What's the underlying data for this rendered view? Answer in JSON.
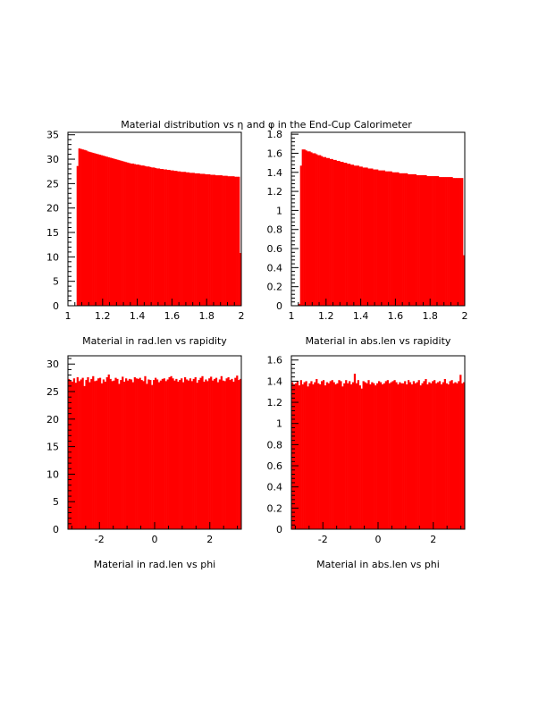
{
  "title": "Material distribution vs η and φ in the End-Cup Calorimeter",
  "colors": {
    "bars": "#ff0000",
    "axes": "#000000",
    "background": "#ffffff"
  },
  "chart_data": [
    {
      "type": "bar",
      "xlabel": "Material in rad.len vs rapidity",
      "ylabel": "",
      "xlim": [
        1,
        2
      ],
      "ylim": [
        0,
        35.5
      ],
      "xticks": [
        1,
        1.2,
        1.4,
        1.6,
        1.8,
        2
      ],
      "xtick_labels": [
        "1",
        "1.2",
        "1.4",
        "1.6",
        "1.8",
        "2"
      ],
      "yticks": [
        0,
        5,
        10,
        15,
        20,
        25,
        30,
        35
      ],
      "ytick_labels": [
        "0",
        "5",
        "10",
        "15",
        "20",
        "25",
        "30",
        "35"
      ],
      "bins": {
        "start": 1.0,
        "end": 2.0,
        "count": 100
      },
      "values": [
        0,
        0,
        0,
        0,
        0,
        28.6,
        32.2,
        32.1,
        32.0,
        31.9,
        31.8,
        31.6,
        31.5,
        31.4,
        31.3,
        31.2,
        31.1,
        31.0,
        30.9,
        30.8,
        30.7,
        30.6,
        30.5,
        30.4,
        30.3,
        30.2,
        30.1,
        30.0,
        29.9,
        29.8,
        29.7,
        29.6,
        29.5,
        29.4,
        29.3,
        29.2,
        29.1,
        29.1,
        29.0,
        28.9,
        28.9,
        28.8,
        28.7,
        28.7,
        28.6,
        28.5,
        28.5,
        28.4,
        28.3,
        28.3,
        28.2,
        28.1,
        28.1,
        28.0,
        28.0,
        27.9,
        27.9,
        27.8,
        27.8,
        27.7,
        27.7,
        27.6,
        27.6,
        27.5,
        27.5,
        27.4,
        27.4,
        27.4,
        27.3,
        27.3,
        27.2,
        27.2,
        27.2,
        27.1,
        27.1,
        27.1,
        27.0,
        27.0,
        27.0,
        26.9,
        26.9,
        26.9,
        26.8,
        26.8,
        26.8,
        26.7,
        26.7,
        26.7,
        26.7,
        26.6,
        26.6,
        26.6,
        26.5,
        26.5,
        26.5,
        26.5,
        26.4,
        26.4,
        26.4,
        10.8
      ]
    },
    {
      "type": "bar",
      "xlabel": "Material in abs.len vs rapidity",
      "ylabel": "",
      "xlim": [
        1,
        2
      ],
      "ylim": [
        0,
        1.82
      ],
      "xticks": [
        1,
        1.2,
        1.4,
        1.6,
        1.8,
        2
      ],
      "xtick_labels": [
        "1",
        "1.2",
        "1.4",
        "1.6",
        "1.8",
        "2"
      ],
      "yticks": [
        0,
        0.2,
        0.4,
        0.6,
        0.8,
        1,
        1.2,
        1.4,
        1.6,
        1.8
      ],
      "ytick_labels": [
        "0",
        "0.2",
        "0.4",
        "0.6",
        "0.8",
        "1",
        "1.2",
        "1.4",
        "1.6",
        "1.8"
      ],
      "bins": {
        "start": 1.0,
        "end": 2.0,
        "count": 100
      },
      "values": [
        0,
        0,
        0,
        0,
        0.02,
        1.47,
        1.64,
        1.64,
        1.63,
        1.62,
        1.62,
        1.61,
        1.6,
        1.6,
        1.59,
        1.58,
        1.58,
        1.57,
        1.56,
        1.56,
        1.55,
        1.55,
        1.54,
        1.54,
        1.53,
        1.53,
        1.52,
        1.52,
        1.51,
        1.51,
        1.5,
        1.5,
        1.49,
        1.49,
        1.48,
        1.48,
        1.47,
        1.47,
        1.47,
        1.46,
        1.46,
        1.45,
        1.45,
        1.45,
        1.44,
        1.44,
        1.44,
        1.43,
        1.43,
        1.43,
        1.42,
        1.42,
        1.42,
        1.42,
        1.41,
        1.41,
        1.41,
        1.41,
        1.4,
        1.4,
        1.4,
        1.4,
        1.39,
        1.39,
        1.39,
        1.39,
        1.39,
        1.38,
        1.38,
        1.38,
        1.38,
        1.38,
        1.37,
        1.37,
        1.37,
        1.37,
        1.37,
        1.37,
        1.36,
        1.36,
        1.36,
        1.36,
        1.36,
        1.36,
        1.36,
        1.35,
        1.35,
        1.35,
        1.35,
        1.35,
        1.35,
        1.35,
        1.35,
        1.34,
        1.34,
        1.34,
        1.34,
        1.34,
        1.34,
        0.53
      ]
    },
    {
      "type": "bar",
      "xlabel": "Material in rad.len vs phi",
      "ylabel": "",
      "xlim": [
        -3.1416,
        3.1416
      ],
      "ylim": [
        0,
        31.5
      ],
      "xticks": [
        -2,
        0,
        2
      ],
      "xtick_labels": [
        "-2",
        "0",
        "2"
      ],
      "yticks": [
        0,
        5,
        10,
        15,
        20,
        25,
        30
      ],
      "ytick_labels": [
        "0",
        "5",
        "10",
        "15",
        "20",
        "25",
        "30"
      ],
      "bins": {
        "start": -3.1416,
        "end": 3.1416,
        "count": 100
      },
      "values": [
        27.3,
        27.0,
        26.8,
        27.4,
        26.6,
        27.6,
        26.9,
        27.2,
        27.5,
        26.0,
        27.1,
        27.6,
        26.7,
        27.3,
        27.8,
        26.9,
        27.0,
        27.4,
        27.5,
        26.5,
        27.2,
        26.8,
        27.6,
        28.1,
        27.3,
        26.9,
        27.0,
        27.5,
        27.3,
        26.4,
        27.1,
        27.7,
        26.8,
        27.4,
        27.0,
        27.3,
        27.2,
        26.7,
        27.6,
        27.4,
        27.3,
        27.5,
        27.1,
        26.9,
        27.8,
        26.4,
        27.2,
        27.1,
        26.2,
        27.1,
        27.5,
        27.2,
        26.7,
        27.0,
        27.3,
        27.4,
        26.9,
        27.2,
        27.6,
        27.8,
        27.4,
        27.0,
        27.3,
        26.8,
        27.1,
        27.4,
        26.7,
        27.6,
        27.2,
        27.0,
        27.4,
        26.9,
        27.3,
        27.6,
        26.6,
        27.1,
        27.5,
        27.8,
        26.8,
        27.2,
        26.9,
        27.4,
        27.7,
        27.0,
        27.3,
        27.5,
        26.7,
        27.2,
        27.8,
        27.0,
        26.9,
        27.4,
        27.6,
        27.1,
        27.3,
        26.8,
        27.5,
        27.9,
        27.1,
        27.3
      ]
    },
    {
      "type": "bar",
      "xlabel": "Material in abs.len vs phi",
      "ylabel": "",
      "xlim": [
        -3.1416,
        3.1416
      ],
      "ylim": [
        0,
        1.64
      ],
      "xticks": [
        -2,
        0,
        2
      ],
      "xtick_labels": [
        "-2",
        "0",
        "2"
      ],
      "yticks": [
        0,
        0.2,
        0.4,
        0.6,
        0.8,
        1,
        1.2,
        1.4,
        1.6
      ],
      "ytick_labels": [
        "0",
        "0.2",
        "0.4",
        "0.6",
        "0.8",
        "1",
        "1.2",
        "1.4",
        "1.6"
      ],
      "bins": {
        "start": -3.1416,
        "end": 3.1416,
        "count": 100
      },
      "values": [
        1.39,
        1.37,
        1.38,
        1.4,
        1.36,
        1.41,
        1.37,
        1.39,
        1.4,
        1.35,
        1.38,
        1.4,
        1.37,
        1.39,
        1.42,
        1.38,
        1.37,
        1.4,
        1.41,
        1.36,
        1.39,
        1.38,
        1.4,
        1.41,
        1.39,
        1.37,
        1.38,
        1.41,
        1.4,
        1.35,
        1.38,
        1.41,
        1.38,
        1.4,
        1.37,
        1.39,
        1.47,
        1.38,
        1.41,
        1.36,
        1.33,
        1.4,
        1.39,
        1.38,
        1.41,
        1.37,
        1.39,
        1.38,
        1.36,
        1.38,
        1.4,
        1.39,
        1.37,
        1.38,
        1.4,
        1.41,
        1.38,
        1.39,
        1.4,
        1.41,
        1.39,
        1.37,
        1.39,
        1.38,
        1.38,
        1.4,
        1.37,
        1.41,
        1.39,
        1.37,
        1.4,
        1.38,
        1.39,
        1.41,
        1.36,
        1.38,
        1.4,
        1.42,
        1.37,
        1.39,
        1.38,
        1.4,
        1.41,
        1.38,
        1.39,
        1.4,
        1.37,
        1.39,
        1.42,
        1.38,
        1.37,
        1.4,
        1.41,
        1.38,
        1.39,
        1.38,
        1.4,
        1.46,
        1.38,
        1.39
      ]
    }
  ]
}
